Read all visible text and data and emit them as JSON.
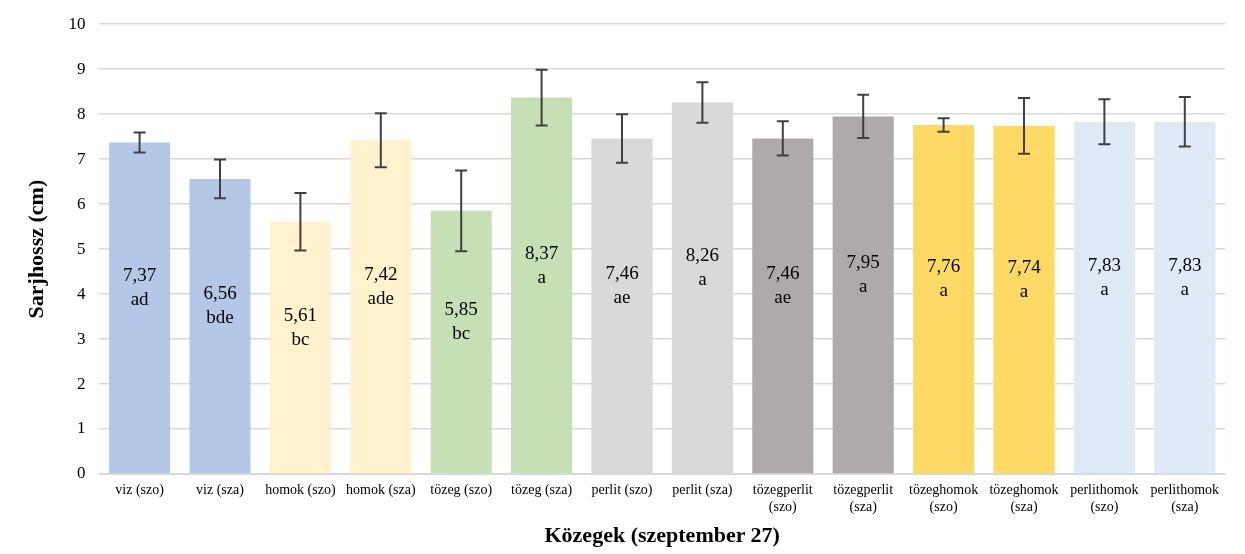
{
  "chart_data": {
    "type": "bar",
    "xlabel": "Közegek (szeptember 27)",
    "ylabel": "Sarjhossz (cm)",
    "categories": [
      "viz (szo)",
      "viz (sza)",
      "homok (szo)",
      "homok (sza)",
      "tözeg (szo)",
      "tözeg (sza)",
      "perlit (szo)",
      "perlit (sza)",
      "tözegperlit (szo)",
      "tözegperlit (sza)",
      "tözeghomok (szo)",
      "tözeghomok (sza)",
      "perlithomok (szo)",
      "perlithomok (sza)"
    ],
    "values": [
      7.37,
      6.56,
      5.61,
      7.42,
      5.85,
      8.37,
      7.46,
      8.26,
      7.46,
      7.95,
      7.76,
      7.74,
      7.83,
      7.83
    ],
    "colors": [
      "#b4c7e7",
      "#b4c7e7",
      "#fff2cc",
      "#fff2cc",
      "#c5e0b4",
      "#c5e0b4",
      "#d9d9d9",
      "#d9d9d9",
      "#aeaaaa",
      "#aeaaaa",
      "#ffd966",
      "#ffd966",
      "#deebf7",
      "#deebf7"
    ],
    "errors": [
      0.22,
      0.43,
      0.64,
      0.6,
      0.9,
      0.62,
      0.54,
      0.45,
      0.38,
      0.48,
      0.15,
      0.62,
      0.5,
      0.55
    ],
    "value_labels": [
      "7,37\nad",
      "6,56\nbde",
      "5,61\nbc",
      "7,42\nade",
      "5,85\nbc",
      "8,37\na",
      "7,46\nae",
      "8,26\na",
      "7,46\nae",
      "7,95\na",
      "7,76\na",
      "7,74\na",
      "7,83\na",
      "7,83\na"
    ],
    "ylim": [
      0,
      10
    ],
    "yticks": [
      0,
      1,
      2,
      3,
      4,
      5,
      6,
      7,
      8,
      9,
      10
    ],
    "grid": "y",
    "legend": false
  }
}
